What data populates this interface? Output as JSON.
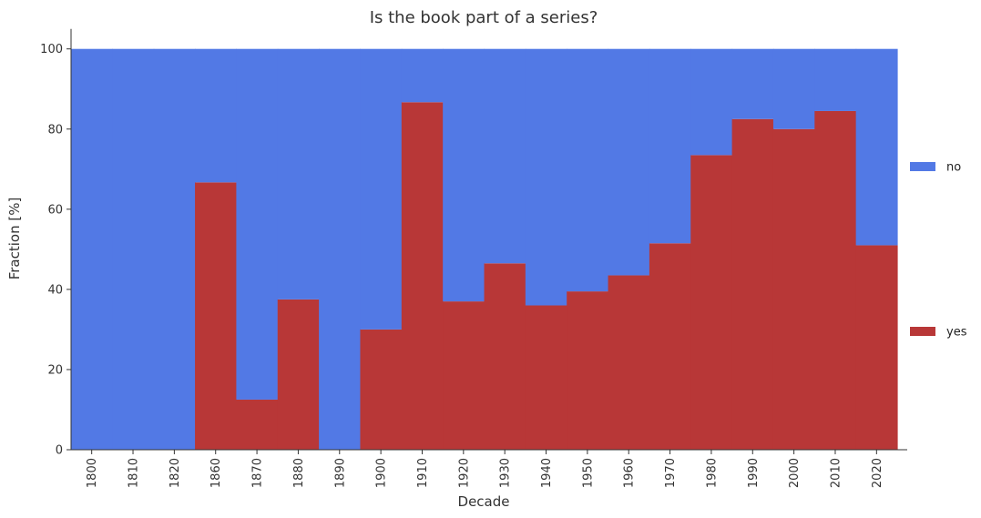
{
  "chart_data": {
    "type": "bar",
    "stacked": true,
    "title": "Is the book part of a series?",
    "xlabel": "Decade",
    "ylabel": "Fraction [%]",
    "ylim": [
      0,
      105
    ],
    "yticks": [
      0,
      20,
      40,
      60,
      80,
      100
    ],
    "grid": false,
    "legend_placement": "right",
    "categories": [
      "1800",
      "1810",
      "1820",
      "1860",
      "1870",
      "1880",
      "1890",
      "1900",
      "1910",
      "1920",
      "1930",
      "1940",
      "1950",
      "1960",
      "1970",
      "1980",
      "1990",
      "2000",
      "2010",
      "2020"
    ],
    "series": [
      {
        "name": "yes",
        "color": "#b83737",
        "values": [
          0,
          0,
          0,
          66.7,
          12.5,
          37.5,
          0,
          30,
          86.7,
          37,
          46.5,
          36,
          39.5,
          43.5,
          51.5,
          73.5,
          82.5,
          80,
          84.5,
          51
        ]
      },
      {
        "name": "no",
        "color": "#5279e5",
        "values": [
          100,
          100,
          100,
          33.3,
          87.5,
          62.5,
          100,
          70,
          13.3,
          63,
          53.5,
          64,
          60.5,
          56.5,
          48.5,
          26.5,
          17.5,
          20,
          15.5,
          49
        ]
      }
    ]
  }
}
